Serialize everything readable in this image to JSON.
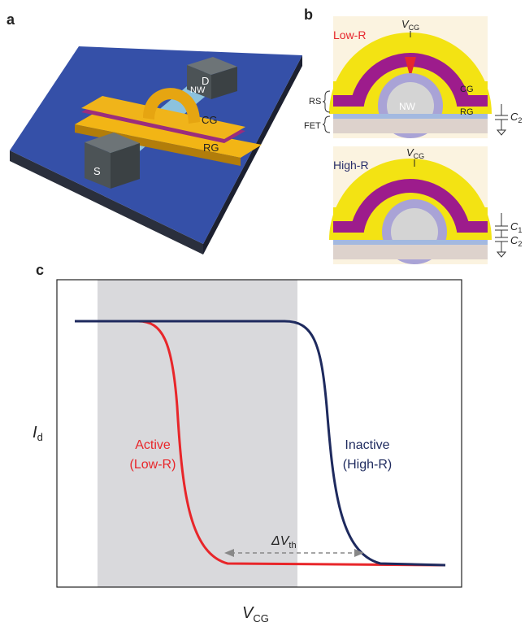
{
  "panel_a": {
    "label": "a",
    "drain": "D",
    "nanowire": "NW",
    "source": "S",
    "control_gate": "CG",
    "reference_gate": "RG"
  },
  "panel_b": {
    "label": "b",
    "low_r": {
      "state": "Low-R",
      "gate": {
        "symbol": "V",
        "sub": "CG"
      },
      "control_gate": "CG",
      "reference_gate": "RG",
      "nanowire": "NW",
      "rs_layer": "RS",
      "fet_layer": "FET",
      "capacitor": {
        "symbol": "C",
        "sub": "2"
      }
    },
    "high_r": {
      "state": "High-R",
      "gate": {
        "symbol": "V",
        "sub": "CG"
      },
      "capacitors": [
        {
          "symbol": "C",
          "sub": "1"
        },
        {
          "symbol": "C",
          "sub": "2"
        }
      ]
    }
  },
  "panel_c": {
    "label": "c",
    "active": [
      "Active",
      "(Low-R)"
    ],
    "inactive": [
      "Inactive",
      "(High-R)"
    ],
    "delta": {
      "symbol": "ΔV",
      "sub": "th"
    },
    "y_axis": {
      "symbol": "I",
      "sub": "d"
    },
    "x_axis": {
      "symbol": "V",
      "sub": "CG"
    }
  }
}
